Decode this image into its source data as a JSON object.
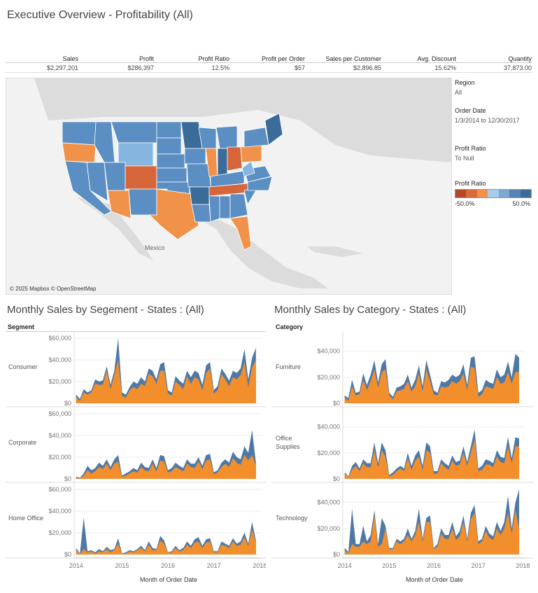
{
  "header": {
    "title": "Executive Overview - Profitability (All)"
  },
  "kpis": [
    {
      "label": "Sales",
      "value": "$2,297,201"
    },
    {
      "label": "Profit",
      "value": "$286,397"
    },
    {
      "label": "Profit Ratio",
      "value": "12.5%"
    },
    {
      "label": "Profit per Order",
      "value": "$57"
    },
    {
      "label": "Sales per Customer",
      "value": "$2,896.85"
    },
    {
      "label": "Avg. Discount",
      "value": "15.62%"
    },
    {
      "label": "Quantity",
      "value": "37,873.00"
    }
  ],
  "map": {
    "country_label": "Mexico",
    "copyright": "© 2025 Mapbox © OpenStreetMap",
    "colors": {
      "dark_blue": "#3a6b99",
      "mid_blue": "#5b8ec2",
      "light_blue": "#85b6e0",
      "orange": "#f0924a",
      "dark_orange": "#d6663a"
    }
  },
  "filters": {
    "region_label": "Region",
    "region_value": "All",
    "order_date_label": "Order Date",
    "order_date_value": "1/3/2014 to 12/30/2017",
    "profit_ratio_label": "Profit Ratio",
    "profit_ratio_value": "To Null",
    "legend_label": "Profit Ratio",
    "legend_min": "-50.0%",
    "legend_max": "50.0%",
    "legend_colors": [
      "#b5482b",
      "#d96a3a",
      "#f0924a",
      "#a9cce9",
      "#7fa8cf",
      "#5883b3",
      "#3a6b99"
    ]
  },
  "segment_chart": {
    "title": "Monthly Sales by Segement - States : (All)",
    "facet_header": "Segment",
    "xlabel": "Month of Order Date",
    "x_ticks": [
      "2014",
      "2015",
      "2016",
      "2017",
      "2018"
    ],
    "y_ticks": [
      "$0",
      "$20,000",
      "$40,000",
      "$60,000"
    ],
    "rows": [
      "Consumer",
      "Corporate",
      "Home Office"
    ]
  },
  "category_chart": {
    "title": "Monthly Sales by Category - States : (All)",
    "facet_header": "Category",
    "xlabel": "Month of Order Date",
    "x_ticks": [
      "2014",
      "2015",
      "2016",
      "2017",
      "2018"
    ],
    "y_ticks": [
      "$0",
      "$20,000",
      "$40,000"
    ],
    "rows": [
      "Furniture",
      "Office\nSupplies",
      "Technology"
    ]
  },
  "chart_data": [
    {
      "type": "area",
      "title": "Monthly Sales by Segement - States : (All)",
      "xlabel": "Month of Order Date",
      "ylim": [
        0,
        60000
      ],
      "colors": {
        "total": "#4e79a7",
        "highlight": "#f28e2b"
      },
      "series": [
        {
          "name": "Consumer",
          "total": [
            8000,
            4000,
            13000,
            10000,
            12000,
            22000,
            20000,
            21000,
            34000,
            17000,
            30000,
            62000,
            10000,
            8000,
            15000,
            20000,
            18000,
            24000,
            20000,
            32000,
            30000,
            22000,
            36000,
            38000,
            12000,
            10000,
            25000,
            21000,
            18000,
            30000,
            24000,
            30000,
            28000,
            17000,
            35000,
            38000,
            12000,
            16000,
            32000,
            27000,
            21000,
            30000,
            28000,
            32000,
            50000,
            22000,
            42000,
            51000
          ],
          "highlight": [
            6000,
            2000,
            10000,
            8000,
            10000,
            18000,
            17000,
            17000,
            30000,
            13000,
            26000,
            40000,
            7000,
            5000,
            12000,
            15000,
            13000,
            18000,
            16000,
            27000,
            25000,
            18000,
            30000,
            30000,
            9000,
            7000,
            20000,
            17000,
            13000,
            25000,
            18000,
            24000,
            22000,
            12000,
            28000,
            32000,
            9000,
            12000,
            27000,
            22000,
            16000,
            24000,
            22000,
            26000,
            38000,
            15000,
            33000,
            40000
          ]
        },
        {
          "name": "Corporate",
          "total": [
            2000,
            1000,
            5000,
            12000,
            8000,
            10000,
            15000,
            12000,
            18000,
            11000,
            18000,
            22000,
            3000,
            5000,
            7000,
            10000,
            8000,
            15000,
            11000,
            10000,
            18000,
            10000,
            22000,
            21000,
            8000,
            10000,
            15000,
            12000,
            10000,
            18000,
            14000,
            14000,
            20000,
            12000,
            22000,
            23000,
            6000,
            8000,
            15000,
            18000,
            15000,
            25000,
            20000,
            18000,
            30000,
            24000,
            45000,
            15000
          ],
          "highlight": [
            1000,
            500,
            3000,
            8000,
            5000,
            7000,
            11000,
            9000,
            14000,
            8000,
            14000,
            16000,
            2000,
            3000,
            5000,
            7000,
            6000,
            11000,
            8000,
            7000,
            14000,
            7000,
            17000,
            16000,
            6000,
            7000,
            11000,
            9000,
            7000,
            14000,
            11000,
            10000,
            16000,
            9000,
            17000,
            18000,
            4000,
            6000,
            11000,
            14000,
            11000,
            19000,
            15000,
            13000,
            22000,
            17000,
            22000,
            12000
          ]
        },
        {
          "name": "Home Office",
          "total": [
            6000,
            1000,
            34000,
            3000,
            4000,
            2000,
            5000,
            3000,
            7000,
            4000,
            5000,
            15000,
            1000,
            2000,
            4000,
            3000,
            5000,
            8000,
            4000,
            12000,
            6000,
            5000,
            17000,
            13000,
            2000,
            3000,
            8000,
            4000,
            6000,
            12000,
            8000,
            14000,
            16000,
            8000,
            14000,
            15000,
            3000,
            3000,
            12000,
            10000,
            8000,
            15000,
            10000,
            12000,
            20000,
            10000,
            30000,
            13000
          ],
          "highlight": [
            4000,
            500,
            5000,
            2000,
            3000,
            1000,
            3000,
            2000,
            5000,
            2000,
            4000,
            10000,
            500,
            1000,
            3000,
            2000,
            4000,
            6000,
            3000,
            9000,
            4000,
            4000,
            13000,
            10000,
            1500,
            2000,
            6000,
            3000,
            4000,
            9000,
            6000,
            11000,
            12000,
            6000,
            11000,
            12000,
            2000,
            2000,
            9000,
            8000,
            6000,
            12000,
            8000,
            9000,
            16000,
            8000,
            23000,
            11000
          ]
        }
      ]
    },
    {
      "type": "area",
      "title": "Monthly Sales by Category - States : (All)",
      "xlabel": "Month of Order Date",
      "ylim": [
        0,
        50000
      ],
      "colors": {
        "total": "#4e79a7",
        "highlight": "#f28e2b"
      },
      "series": [
        {
          "name": "Furniture",
          "total": [
            6000,
            4000,
            18000,
            8000,
            9000,
            23000,
            14000,
            22000,
            33000,
            16000,
            30000,
            34000,
            8000,
            5000,
            12000,
            13000,
            15000,
            22000,
            12000,
            18000,
            29000,
            13000,
            33000,
            22000,
            10000,
            8000,
            17000,
            16000,
            18000,
            22000,
            20000,
            22000,
            30000,
            14000,
            35000,
            36000,
            8000,
            10000,
            18000,
            16000,
            15000,
            26000,
            20000,
            22000,
            32000,
            20000,
            38000,
            35000
          ],
          "highlight": [
            4000,
            2000,
            13000,
            6000,
            7000,
            18000,
            10000,
            17000,
            26000,
            12000,
            24000,
            26000,
            6000,
            3000,
            9000,
            10000,
            11000,
            17000,
            9000,
            13000,
            23000,
            9000,
            26000,
            17000,
            7000,
            6000,
            13000,
            12000,
            13000,
            17000,
            15000,
            17000,
            23000,
            10000,
            28000,
            27000,
            5000,
            7000,
            13000,
            12000,
            11000,
            20000,
            15000,
            16000,
            24000,
            15000,
            24000,
            24000
          ]
        },
        {
          "name": "Office Supplies",
          "total": [
            5000,
            2000,
            10000,
            13000,
            8000,
            15000,
            12000,
            12000,
            28000,
            12000,
            28000,
            22000,
            3000,
            5000,
            8000,
            10000,
            8000,
            20000,
            10000,
            18000,
            22000,
            10000,
            28000,
            25000,
            6000,
            6000,
            15000,
            12000,
            10000,
            18000,
            13000,
            14000,
            25000,
            13000,
            25000,
            38000,
            8000,
            10000,
            15000,
            14000,
            12000,
            22000,
            17000,
            16000,
            32000,
            16000,
            32000,
            31000
          ],
          "highlight": [
            4000,
            1500,
            7000,
            10000,
            6000,
            12000,
            9000,
            9000,
            22000,
            9000,
            22000,
            17000,
            2000,
            3000,
            6000,
            8000,
            6000,
            16000,
            7000,
            14000,
            17000,
            7000,
            22000,
            20000,
            4000,
            4000,
            12000,
            9000,
            7000,
            14000,
            10000,
            11000,
            20000,
            10000,
            20000,
            30000,
            6000,
            7000,
            11000,
            11000,
            9000,
            17000,
            13000,
            12000,
            25000,
            12000,
            25000,
            25000
          ]
        },
        {
          "name": "Technology",
          "total": [
            5000,
            2000,
            35000,
            8000,
            8000,
            22000,
            10000,
            15000,
            34000,
            8000,
            28000,
            22000,
            5000,
            5000,
            12000,
            10000,
            12000,
            20000,
            12000,
            18000,
            35000,
            12000,
            28000,
            30000,
            5000,
            8000,
            20000,
            15000,
            15000,
            25000,
            14000,
            18000,
            30000,
            12000,
            32000,
            38000,
            10000,
            12000,
            22000,
            16000,
            14000,
            25000,
            18000,
            25000,
            45000,
            20000,
            40000,
            55000
          ],
          "highlight": [
            3000,
            1000,
            8000,
            6000,
            6000,
            10000,
            8000,
            10000,
            30000,
            6000,
            8000,
            20000,
            4000,
            4000,
            10000,
            8000,
            10000,
            15000,
            10000,
            15000,
            25000,
            10000,
            25000,
            25000,
            4000,
            6000,
            16000,
            12000,
            12000,
            20000,
            11000,
            14000,
            25000,
            10000,
            27000,
            32000,
            8000,
            10000,
            18000,
            13000,
            11000,
            20000,
            15000,
            20000,
            32000,
            16000,
            34000,
            20000
          ]
        }
      ]
    }
  ]
}
